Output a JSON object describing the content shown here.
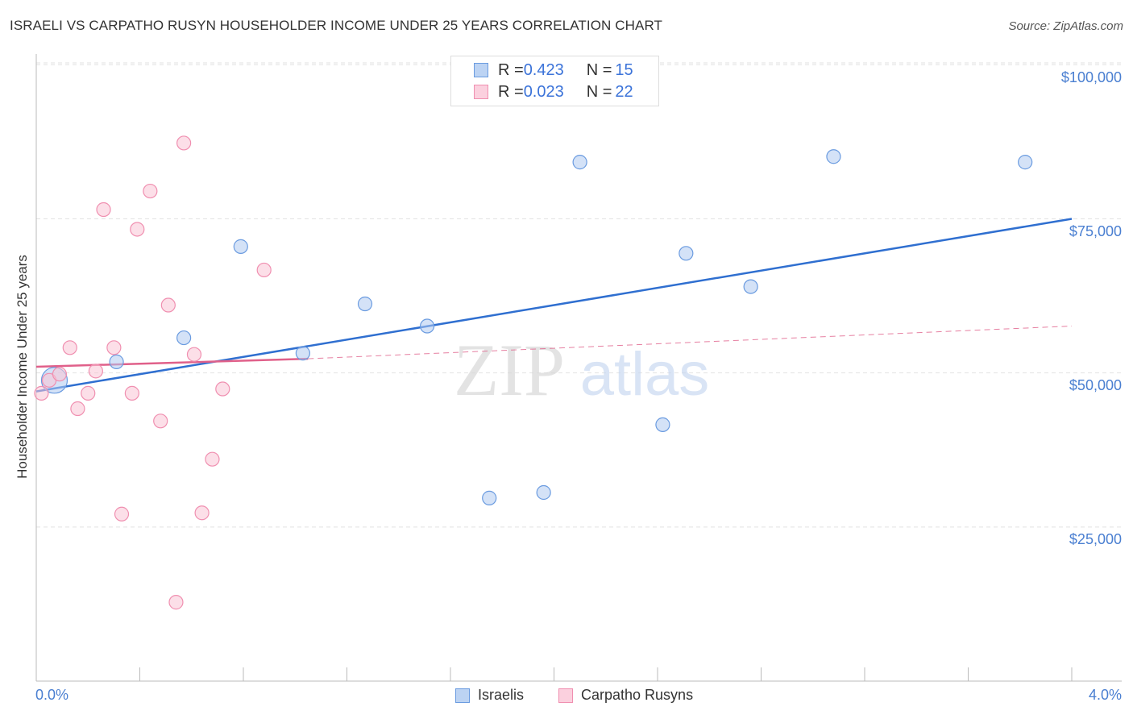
{
  "title": "ISRAELI VS CARPATHO RUSYN HOUSEHOLDER INCOME UNDER 25 YEARS CORRELATION CHART",
  "source": "Source: ZipAtlas.com",
  "watermark": {
    "zip": "ZIP",
    "atlas": "atlas"
  },
  "legend_top": {
    "rows": [
      {
        "r_label": "R = ",
        "r_value": "0.423",
        "n_label": "N = ",
        "n_value": "15"
      },
      {
        "r_label": "R = ",
        "r_value": "0.023",
        "n_label": "N = ",
        "n_value": "22"
      }
    ]
  },
  "legend_bottom": {
    "items": [
      "Israelis",
      "Carpatho Rusyns"
    ]
  },
  "chart_data": {
    "type": "scatter",
    "ylabel": "Householder Income Under 25 years",
    "x_tick_labels": {
      "min": "0.0%",
      "max": "4.0%"
    },
    "y_tick_labels": [
      "$100,000",
      "$75,000",
      "$50,000",
      "$25,000"
    ],
    "xlim": [
      0,
      4.0
    ],
    "ylim": [
      0,
      100000
    ],
    "grid": true,
    "colors": {
      "israelis": "#6a9be0",
      "rusyns": "#f08fb0",
      "israelis_line": "#2f6fd0",
      "rusyns_line": "#e0608a"
    },
    "series": [
      {
        "name": "Israelis",
        "x": [
          0.07,
          0.31,
          0.57,
          0.79,
          1.03,
          1.27,
          1.51,
          1.75,
          1.96,
          2.1,
          2.42,
          2.51,
          2.76,
          3.08,
          3.82
        ],
        "y": [
          48800,
          51800,
          55700,
          70500,
          53200,
          61200,
          57600,
          29700,
          30600,
          84200,
          41600,
          69400,
          64000,
          85100,
          84200
        ]
      },
      {
        "name": "Carpatho Rusyns",
        "x": [
          0.02,
          0.05,
          0.09,
          0.13,
          0.16,
          0.2,
          0.23,
          0.26,
          0.3,
          0.33,
          0.37,
          0.39,
          0.44,
          0.48,
          0.51,
          0.54,
          0.57,
          0.61,
          0.64,
          0.68,
          0.72,
          0.88
        ],
        "y": [
          46700,
          48800,
          49800,
          54100,
          44200,
          46700,
          50300,
          76500,
          54100,
          27100,
          46700,
          73300,
          79500,
          42200,
          61000,
          12800,
          87300,
          53000,
          27300,
          36000,
          47400,
          66700
        ]
      }
    ],
    "trend_lines": [
      {
        "name": "Israelis",
        "x": [
          0,
          4.0
        ],
        "y": [
          47000,
          75000
        ],
        "style": "solid"
      },
      {
        "name": "Carpatho Rusyns",
        "x": [
          0,
          1.05
        ],
        "y": [
          51000,
          52300
        ],
        "style": "solid"
      },
      {
        "name": "Carpatho Rusyns",
        "x": [
          1.05,
          4.0
        ],
        "y": [
          52300,
          57600
        ],
        "style": "dashed"
      }
    ]
  }
}
